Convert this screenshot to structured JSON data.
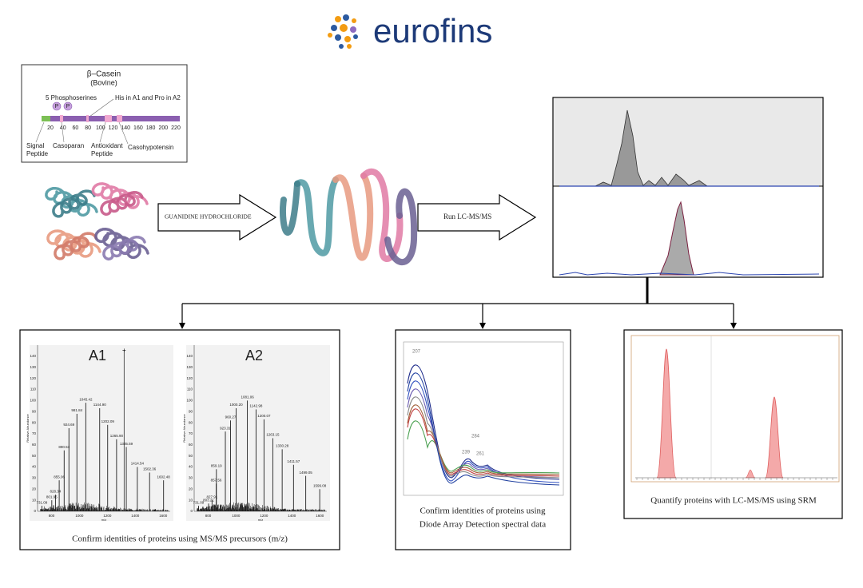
{
  "logo": {
    "text": "eurofins"
  },
  "casein": {
    "title": "β–Casein",
    "subtitle": "(Bovine)",
    "phospho": "5 Phosphoserines",
    "variant": "His in A1 and Pro in A2",
    "p_marks": [
      "P",
      "P"
    ],
    "axis": [
      "20",
      "40",
      "60",
      "80",
      "100",
      "120",
      "140",
      "160",
      "180",
      "200",
      "220"
    ],
    "signal": [
      "Signal",
      "Peptide"
    ],
    "casoparan": "Casoparan",
    "antioxidant": [
      "Antioxidant",
      "Peptide"
    ],
    "casohypotensin": "Casohypotensin"
  },
  "steps": {
    "denature": "GUANIDINE HYDROCHLORIDE",
    "run": "Run LC-MS/MS"
  },
  "spectra": [
    {
      "label": "A1",
      "peaks": [
        "1045.42",
        "981.84",
        "1144.90",
        "924.69",
        "1202.09",
        "1265.90",
        "890.53",
        "1335.59",
        "1414.54",
        "1502.36",
        "1602.48",
        "855.06",
        "828.34",
        "801.95",
        "731.09"
      ]
    },
    {
      "label": "A2",
      "peaks": [
        "1081.06",
        "1000.20",
        "1142.98",
        "960.27",
        "1200.07",
        "923.31",
        "1263.15",
        "1330.28",
        "859.19",
        "1411.57",
        "1499.05",
        "1599.08",
        "857.56",
        "827.91",
        "803.21",
        "731.09"
      ]
    }
  ],
  "spectra_axes": {
    "xticks": [
      "800",
      "1000",
      "1200",
      "1400",
      "1600"
    ],
    "yticks": [
      "0",
      "10",
      "20",
      "30",
      "40",
      "50",
      "60",
      "70",
      "80",
      "90",
      "100",
      "110",
      "120",
      "130",
      "140"
    ],
    "x_label": "m/z",
    "y_label": "Relative Abundance"
  },
  "dad": {
    "labels": [
      "207",
      "284",
      "239",
      "261"
    ]
  },
  "captions": {
    "ms": "Confirm identities of proteins using MS/MS precursors (m/z)",
    "dad": [
      "Confirm identities of proteins using",
      "Diode Array Detection spectral data"
    ],
    "srm": "Quantify proteins with LC-MS/MS using SRM"
  }
}
